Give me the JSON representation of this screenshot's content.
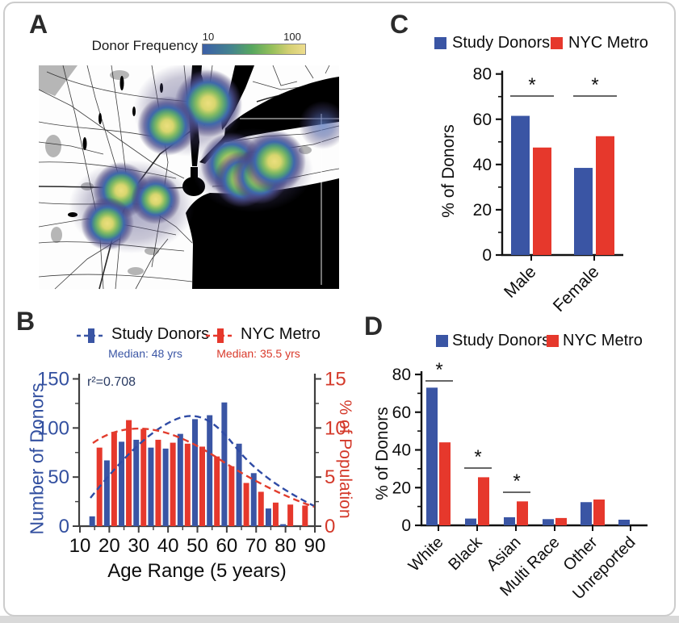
{
  "panels": {
    "a": "A",
    "b": "B",
    "c": "C",
    "d": "D"
  },
  "colors": {
    "study_blue": "#3A55A4",
    "metro_red": "#E6382C",
    "blue_axis_text": "#3350a0",
    "red_axis_text": "#D43A2B",
    "navy_annotation": "#2a3b63",
    "axis_line_dark": "#3f3f3f",
    "axis_line_black": "#111111"
  },
  "panelA": {
    "legend_title": "Donor Frequency",
    "colorbar_min": "10",
    "colorbar_max": "100"
  },
  "panelB": {
    "legend": [
      {
        "label": "Study Donors",
        "median": "Median: 48 yrs"
      },
      {
        "label": "NYC Metro",
        "median": "Median: 35.5 yrs"
      }
    ],
    "r2_label": "r²=0.708",
    "ylabel_left": "Number of Donors",
    "ylabel_right": "% of Population",
    "xlabel": "Age Range (5 years)"
  },
  "panelC": {
    "legend": [
      {
        "label": "Study Donors"
      },
      {
        "label": "NYC Metro"
      }
    ],
    "ylabel": "% of Donors"
  },
  "panelD": {
    "legend": [
      {
        "label": "Study Donors"
      },
      {
        "label": "NYC Metro"
      }
    ],
    "ylabel": "% of Donors"
  },
  "chart_data": [
    {
      "id": "panelA",
      "type": "heatmap",
      "title": "Donor Frequency",
      "colorbar": {
        "min": 10,
        "max": 100
      },
      "description_visible": "density map with blue-green-yellow hotspots over road map, black water"
    },
    {
      "id": "panelB",
      "type": "bar",
      "categories": [
        15,
        20,
        25,
        30,
        35,
        40,
        45,
        50,
        55,
        60,
        65,
        70,
        75,
        80,
        85
      ],
      "series": [
        {
          "name": "Study Donors",
          "axis": "left",
          "median_years": 48,
          "values": [
            10,
            67,
            86,
            88,
            80,
            79,
            94,
            109,
            113,
            126,
            84,
            54,
            18,
            2,
            0
          ]
        },
        {
          "name": "NYC Metro",
          "axis": "right",
          "median_years": 35.5,
          "values": [
            8.0,
            9.6,
            10.8,
            9.9,
            8.8,
            8.5,
            8.4,
            8.1,
            7.1,
            6.1,
            4.4,
            3.5,
            2.4,
            2.2,
            2.1
          ]
        }
      ],
      "r_squared": 0.708,
      "xlabel": "Age Range (5 years)",
      "ylabel_left": "Number of Donors",
      "ylabel_right": "% of Population",
      "ylim_left": [
        0,
        150
      ],
      "yticks_left": [
        0,
        50,
        100,
        150
      ],
      "ylim_right": [
        0,
        15
      ],
      "yticks_right": [
        0,
        5,
        10,
        15
      ],
      "xticks": [
        10,
        20,
        30,
        40,
        50,
        60,
        70,
        80,
        90
      ],
      "trend_lines": "dashed fitted curves for both series",
      "legend_position": "top"
    },
    {
      "id": "panelC",
      "type": "bar",
      "categories": [
        "Male",
        "Female"
      ],
      "series": [
        {
          "name": "Study Donors",
          "values": [
            61.5,
            38.5
          ]
        },
        {
          "name": "NYC Metro",
          "values": [
            47.5,
            52.5
          ]
        }
      ],
      "ylabel": "% of Donors",
      "ylim": [
        0,
        80
      ],
      "yticks": [
        0,
        20,
        40,
        60,
        80
      ],
      "significance": [
        "*",
        "*"
      ],
      "legend_position": "top"
    },
    {
      "id": "panelD",
      "type": "bar",
      "categories": [
        "White",
        "Black",
        "Asian",
        "Multi Race",
        "Other",
        "Unreported"
      ],
      "series": [
        {
          "name": "Study Donors",
          "values": [
            73,
            3.6,
            4.3,
            3.3,
            12.3,
            3.0
          ]
        },
        {
          "name": "NYC Metro",
          "values": [
            44,
            25.5,
            12.7,
            3.9,
            13.7,
            null
          ]
        }
      ],
      "ylabel": "% of Donors",
      "ylim": [
        0,
        80
      ],
      "yticks": [
        0,
        20,
        40,
        60,
        80
      ],
      "significance": [
        "*",
        "*",
        "*",
        null,
        null,
        null
      ],
      "legend_position": "top"
    }
  ]
}
